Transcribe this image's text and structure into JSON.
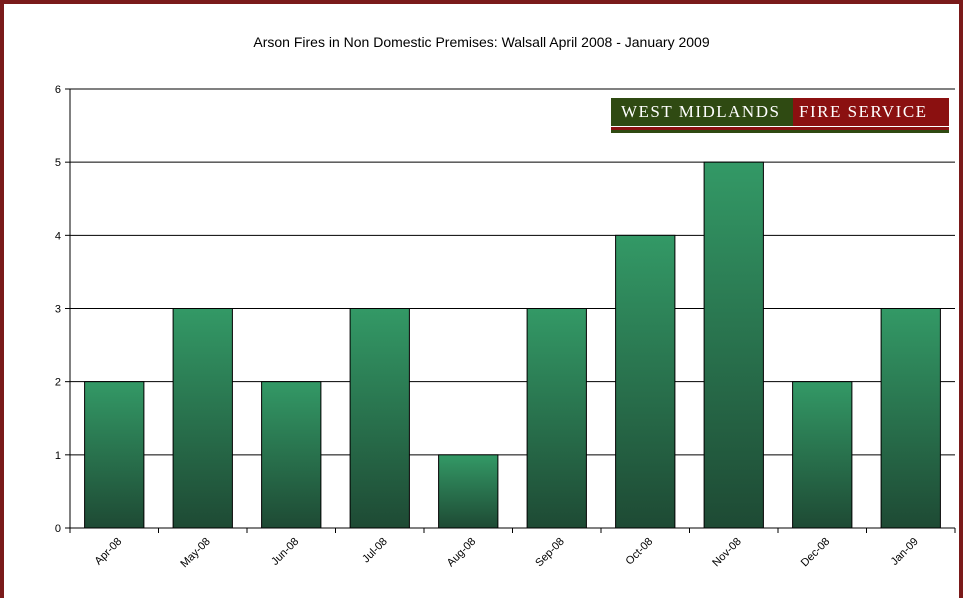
{
  "chart_data": {
    "type": "bar",
    "title": "Arson Fires in Non Domestic Premises: Walsall April 2008 - January 2009",
    "xlabel": "",
    "ylabel": "",
    "categories": [
      "Apr-08",
      "May-08",
      "Jun-08",
      "Jul-08",
      "Aug-08",
      "Sep-08",
      "Oct-08",
      "Nov-08",
      "Dec-08",
      "Jan-09"
    ],
    "values": [
      2,
      3,
      2,
      3,
      1,
      3,
      4,
      5,
      2,
      3
    ],
    "ylim": [
      0,
      6
    ],
    "yticks": [
      0,
      1,
      2,
      3,
      4,
      5,
      6
    ],
    "grid": true,
    "legend": "none",
    "colors": {
      "bar_top": "#339966",
      "bar_bottom": "#1e4a34",
      "frame": "#7a1a1a"
    }
  },
  "logo": {
    "left_text": "WEST MIDLANDS",
    "right_text": "FIRE SERVICE",
    "colors": {
      "green": "#2f4a12",
      "red": "#8b1010"
    }
  }
}
